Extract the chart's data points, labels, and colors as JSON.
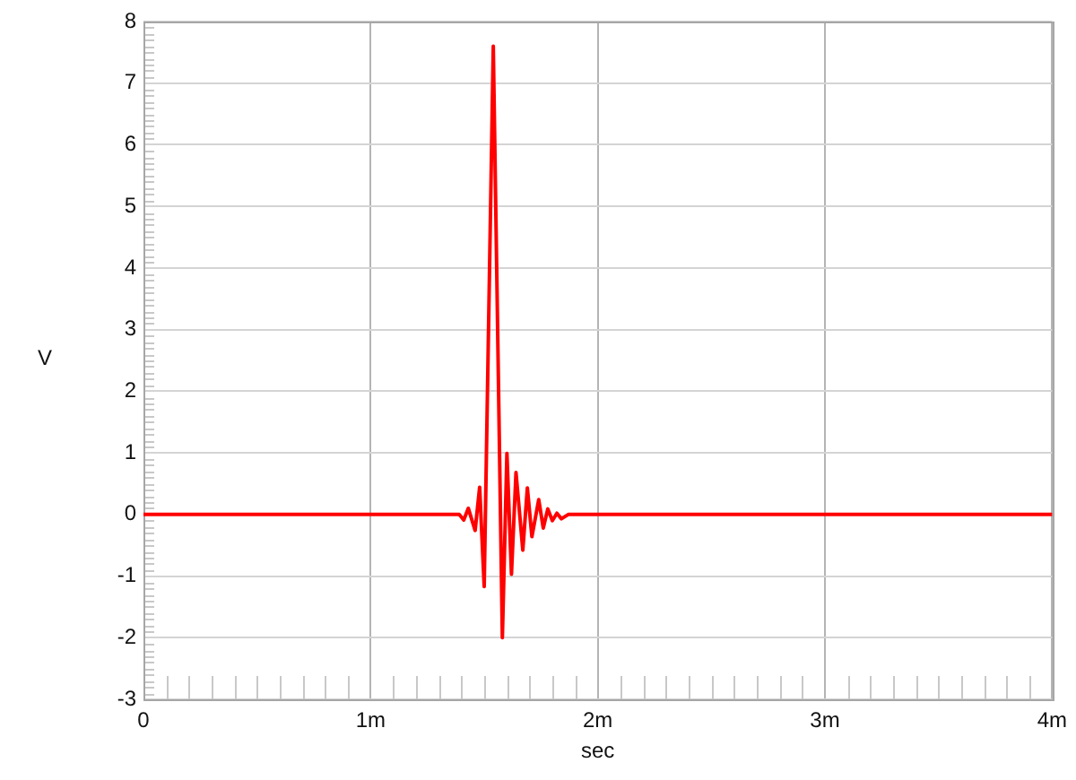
{
  "chart_data": {
    "type": "line",
    "xlabel": "sec",
    "ylabel": "V",
    "x": [
      0,
      1.39,
      1.41,
      1.43,
      1.46,
      1.48,
      1.5,
      1.54,
      1.58,
      1.6,
      1.62,
      1.64,
      1.67,
      1.69,
      1.71,
      1.74,
      1.76,
      1.78,
      1.8,
      1.82,
      1.84,
      1.87,
      4
    ],
    "series": [
      {
        "color": "#ff0000",
        "values": [
          0,
          0,
          -0.09,
          0.1,
          -0.26,
          0.44,
          -1.17,
          7.6,
          -2.0,
          0.99,
          -0.97,
          0.68,
          -0.58,
          0.43,
          -0.36,
          0.24,
          -0.22,
          0.09,
          -0.1,
          0.02,
          -0.07,
          0,
          0
        ]
      }
    ],
    "xlim": [
      0,
      4
    ],
    "xticks": [
      0,
      {
        "value": 0.1,
        "label": null
      },
      {
        "value": 0.2,
        "label": null
      },
      {
        "value": 0.3,
        "label": null
      },
      {
        "value": 0.4,
        "label": null
      },
      {
        "value": 0.5,
        "label": null
      },
      {
        "value": 0.6,
        "label": null
      },
      {
        "value": 0.7,
        "label": null
      },
      {
        "value": 0.8,
        "label": null
      },
      {
        "value": 0.9,
        "label": null
      },
      {
        "value": 1,
        "label": "1m"
      },
      {
        "value": 1.1,
        "label": null
      },
      {
        "value": 1.2,
        "label": null
      },
      {
        "value": 1.3,
        "label": null
      },
      {
        "value": 1.4,
        "label": null
      },
      {
        "value": 1.5,
        "label": null
      },
      {
        "value": 1.6,
        "label": null
      },
      {
        "value": 1.7,
        "label": null
      },
      {
        "value": 1.8,
        "label": null
      },
      {
        "value": 1.9,
        "label": null
      },
      {
        "value": 2,
        "label": "2m"
      },
      {
        "value": 2.1,
        "label": null
      },
      {
        "value": 2.2,
        "label": null
      },
      {
        "value": 2.3,
        "label": null
      },
      {
        "value": 2.4,
        "label": null
      },
      {
        "value": 2.5,
        "label": null
      },
      {
        "value": 2.6,
        "label": null
      },
      {
        "value": 2.7,
        "label": null
      },
      {
        "value": 2.8,
        "label": null
      },
      {
        "value": 2.9,
        "label": null
      },
      {
        "value": 3,
        "label": "3m"
      },
      {
        "value": 3.1,
        "label": null
      },
      {
        "value": 3.2,
        "label": null
      },
      {
        "value": 3.3,
        "label": null
      },
      {
        "value": 3.4,
        "label": null
      },
      {
        "value": 3.5,
        "label": null
      },
      {
        "value": 3.6,
        "label": null
      },
      {
        "value": 3.7,
        "label": null
      },
      {
        "value": 3.8,
        "label": null
      },
      {
        "value": 3.9,
        "label": null
      },
      {
        "value": 4,
        "label": "4m"
      }
    ],
    "ylim": [
      -3,
      8
    ],
    "yticks": [
      -3,
      {
        "value": -2.9,
        "label": null
      },
      {
        "value": -2.8,
        "label": null
      },
      {
        "value": -2.7,
        "label": null
      },
      {
        "value": -2.6,
        "label": null
      },
      {
        "value": -2.5,
        "label": null
      },
      {
        "value": -2.4,
        "label": null
      },
      {
        "value": -2.3,
        "label": null
      },
      {
        "value": -2.2,
        "label": null
      },
      {
        "value": -2.1,
        "label": null
      },
      -2,
      {
        "value": -1.9,
        "label": null
      },
      {
        "value": -1.8,
        "label": null
      },
      {
        "value": -1.7,
        "label": null
      },
      {
        "value": -1.6,
        "label": null
      },
      {
        "value": -1.5,
        "label": null
      },
      {
        "value": -1.4,
        "label": null
      },
      {
        "value": -1.3,
        "label": null
      },
      {
        "value": -1.2,
        "label": null
      },
      {
        "value": -1.1,
        "label": null
      },
      -1,
      {
        "value": -0.9,
        "label": null
      },
      {
        "value": -0.8,
        "label": null
      },
      {
        "value": -0.7,
        "label": null
      },
      {
        "value": -0.6,
        "label": null
      },
      {
        "value": -0.5,
        "label": null
      },
      {
        "value": -0.4,
        "label": null
      },
      {
        "value": -0.3,
        "label": null
      },
      {
        "value": -0.2,
        "label": null
      },
      {
        "value": -0.1,
        "label": null
      },
      0,
      {
        "value": 0.1,
        "label": null
      },
      {
        "value": 0.2,
        "label": null
      },
      {
        "value": 0.3,
        "label": null
      },
      {
        "value": 0.4,
        "label": null
      },
      {
        "value": 0.5,
        "label": null
      },
      {
        "value": 0.6,
        "label": null
      },
      {
        "value": 0.7,
        "label": null
      },
      {
        "value": 0.8,
        "label": null
      },
      {
        "value": 0.9,
        "label": null
      },
      1,
      {
        "value": 1.1,
        "label": null
      },
      {
        "value": 1.2,
        "label": null
      },
      {
        "value": 1.3,
        "label": null
      },
      {
        "value": 1.4,
        "label": null
      },
      {
        "value": 1.5,
        "label": null
      },
      {
        "value": 1.6,
        "label": null
      },
      {
        "value": 1.7,
        "label": null
      },
      {
        "value": 1.8,
        "label": null
      },
      {
        "value": 1.9,
        "label": null
      },
      2,
      {
        "value": 2.1,
        "label": null
      },
      {
        "value": 2.2,
        "label": null
      },
      {
        "value": 2.3,
        "label": null
      },
      {
        "value": 2.4,
        "label": null
      },
      {
        "value": 2.5,
        "label": null
      },
      {
        "value": 2.6,
        "label": null
      },
      {
        "value": 2.7,
        "label": null
      },
      {
        "value": 2.8,
        "label": null
      },
      {
        "value": 2.9,
        "label": null
      },
      3,
      {
        "value": 3.1,
        "label": null
      },
      {
        "value": 3.2,
        "label": null
      },
      {
        "value": 3.3,
        "label": null
      },
      {
        "value": 3.4,
        "label": null
      },
      {
        "value": 3.5,
        "label": null
      },
      {
        "value": 3.6,
        "label": null
      },
      {
        "value": 3.7,
        "label": null
      },
      {
        "value": 3.8,
        "label": null
      },
      {
        "value": 3.9,
        "label": null
      },
      4,
      {
        "value": 4.1,
        "label": null
      },
      {
        "value": 4.2,
        "label": null
      },
      {
        "value": 4.3,
        "label": null
      },
      {
        "value": 4.4,
        "label": null
      },
      {
        "value": 4.5,
        "label": null
      },
      {
        "value": 4.6,
        "label": null
      },
      {
        "value": 4.7,
        "label": null
      },
      {
        "value": 4.8,
        "label": null
      },
      {
        "value": 4.9,
        "label": null
      },
      5,
      {
        "value": 5.1,
        "label": null
      },
      {
        "value": 5.2,
        "label": null
      },
      {
        "value": 5.3,
        "label": null
      },
      {
        "value": 5.4,
        "label": null
      },
      {
        "value": 5.5,
        "label": null
      },
      {
        "value": 5.6,
        "label": null
      },
      {
        "value": 5.7,
        "label": null
      },
      {
        "value": 5.8,
        "label": null
      },
      {
        "value": 5.9,
        "label": null
      },
      6,
      {
        "value": 6.1,
        "label": null
      },
      {
        "value": 6.2,
        "label": null
      },
      {
        "value": 6.3,
        "label": null
      },
      {
        "value": 6.4,
        "label": null
      },
      {
        "value": 6.5,
        "label": null
      },
      {
        "value": 6.6,
        "label": null
      },
      {
        "value": 6.7,
        "label": null
      },
      {
        "value": 6.8,
        "label": null
      },
      {
        "value": 6.9,
        "label": null
      },
      7,
      {
        "value": 7.1,
        "label": null
      },
      {
        "value": 7.2,
        "label": null
      },
      {
        "value": 7.3,
        "label": null
      },
      {
        "value": 7.4,
        "label": null
      },
      {
        "value": 7.5,
        "label": null
      },
      {
        "value": 7.6,
        "label": null
      },
      {
        "value": 7.7,
        "label": null
      },
      {
        "value": 7.8,
        "label": null
      },
      {
        "value": 7.9,
        "label": null
      },
      8
    ],
    "grid": true
  }
}
